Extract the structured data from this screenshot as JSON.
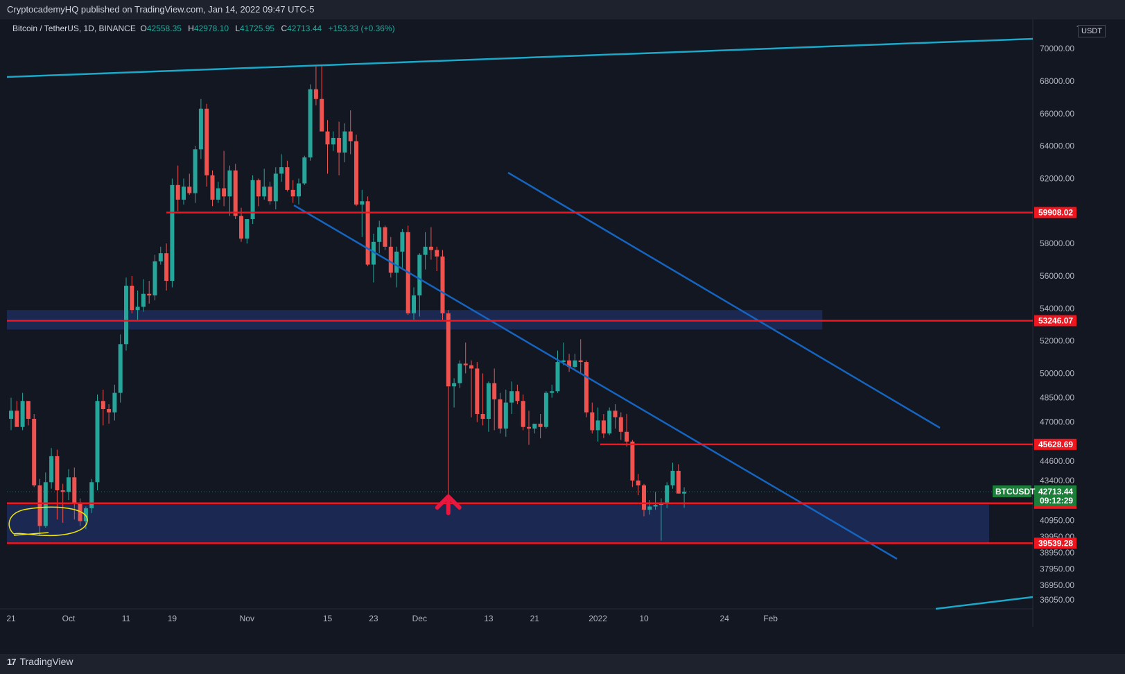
{
  "header": {
    "published": "CryptocademyHQ published on TradingView.com, Jan 14, 2022 09:47 UTC-5"
  },
  "legend": {
    "symbol": "Bitcoin / TetherUS, 1D, BINANCE",
    "o_label": "O",
    "o": "42558.35",
    "h_label": "H",
    "h": "42978.10",
    "l_label": "L",
    "l": "41725.95",
    "c_label": "C",
    "c": "42713.44",
    "change": "+153.33 (+0.36%)"
  },
  "axis": {
    "currency": "USDT",
    "scale_prefix": "7"
  },
  "footer": {
    "brand": "TradingView",
    "brand_logo": "17"
  },
  "price_tag": {
    "symbol": "BTCUSDT",
    "price": "42713.44",
    "countdown": "09:12:29"
  },
  "colors": {
    "background": "#131722",
    "up": "#26a69a",
    "down": "#ef5350",
    "level": "#f0161f",
    "channel": "#1565c0",
    "trend": "#1ca9c9",
    "zone": "#1c2b5a",
    "annotation": "#f2e600"
  },
  "chart_data": {
    "type": "candlestick",
    "ylim": [
      35500,
      71800
    ],
    "yticks": [
      70000,
      68000,
      66000,
      64000,
      62000,
      60000,
      58000,
      56000,
      54000,
      52000,
      50000,
      48500,
      47000,
      44600,
      43400,
      40950,
      39950,
      38950,
      37950,
      36950,
      36050
    ],
    "ytick_labels": [
      "70000.00",
      "68000.00",
      "66000.00",
      "64000.00",
      "62000.00",
      "60000.00",
      "58000.00",
      "56000.00",
      "54000.00",
      "52000.00",
      "50000.00",
      "48500.00",
      "47000.00",
      "44600.00",
      "43400.00",
      "40950.00",
      "39950.00",
      "38950.00",
      "37950.00",
      "36950.00",
      "36050.00"
    ],
    "xticks": [
      {
        "label": "21",
        "day": 0
      },
      {
        "label": "Oct",
        "day": 10
      },
      {
        "label": "11",
        "day": 20
      },
      {
        "label": "19",
        "day": 28
      },
      {
        "label": "Nov",
        "day": 41
      },
      {
        "label": "15",
        "day": 55
      },
      {
        "label": "23",
        "day": 63
      },
      {
        "label": "Dec",
        "day": 71
      },
      {
        "label": "13",
        "day": 83
      },
      {
        "label": "21",
        "day": 91
      },
      {
        "label": "2022",
        "day": 102
      },
      {
        "label": "10",
        "day": 110
      },
      {
        "label": "24",
        "day": 124
      },
      {
        "label": "Feb",
        "day": 132
      }
    ],
    "candles": [
      [
        47200,
        48500,
        46500,
        47700
      ],
      [
        47700,
        48300,
        46900,
        46700
      ],
      [
        46700,
        48800,
        46500,
        48300
      ],
      [
        48300,
        48300,
        46800,
        47200
      ],
      [
        47200,
        47500,
        43000,
        43100
      ],
      [
        43100,
        43500,
        40000,
        40600
      ],
      [
        40600,
        43900,
        40500,
        43300
      ],
      [
        43300,
        45400,
        42900,
        44900
      ],
      [
        44900,
        45300,
        41000,
        42800
      ],
      [
        42800,
        43200,
        40800,
        42700
      ],
      [
        42700,
        44100,
        42200,
        43600
      ],
      [
        43600,
        44200,
        41000,
        42000
      ],
      [
        42000,
        42300,
        40600,
        40900
      ],
      [
        40900,
        41800,
        40400,
        41700
      ],
      [
        41700,
        43500,
        41400,
        43300
      ],
      [
        43300,
        48700,
        42800,
        48300
      ],
      [
        48300,
        49000,
        46800,
        47800
      ],
      [
        47800,
        48100,
        46900,
        47600
      ],
      [
        47600,
        49300,
        47100,
        48800
      ],
      [
        48800,
        52400,
        48200,
        51800
      ],
      [
        51800,
        55900,
        51400,
        55400
      ],
      [
        55400,
        56000,
        53700,
        53900
      ],
      [
        53900,
        55100,
        53300,
        54100
      ],
      [
        54100,
        55800,
        53800,
        54900
      ],
      [
        54900,
        55700,
        54300,
        54800
      ],
      [
        54800,
        57300,
        54500,
        56900
      ],
      [
        56900,
        57800,
        56700,
        57400
      ],
      [
        57400,
        58000,
        55100,
        55700
      ],
      [
        55700,
        62000,
        55300,
        61600
      ],
      [
        61600,
        62800,
        60000,
        60700
      ],
      [
        60700,
        62000,
        60400,
        61500
      ],
      [
        61500,
        62300,
        61000,
        61100
      ],
      [
        61100,
        64000,
        60500,
        63800
      ],
      [
        63800,
        66900,
        63200,
        66300
      ],
      [
        66300,
        66600,
        61500,
        62200
      ],
      [
        62200,
        62500,
        60300,
        60700
      ],
      [
        60700,
        61800,
        60500,
        61400
      ],
      [
        61400,
        63700,
        60300,
        60900
      ],
      [
        60900,
        62800,
        59700,
        62500
      ],
      [
        62500,
        62900,
        59500,
        59700
      ],
      [
        59700,
        60200,
        58100,
        58300
      ],
      [
        58300,
        59400,
        58000,
        59500
      ],
      [
        59500,
        62200,
        59200,
        61900
      ],
      [
        61900,
        62000,
        60300,
        60900
      ],
      [
        60900,
        62600,
        60700,
        61500
      ],
      [
        61500,
        61800,
        60400,
        60600
      ],
      [
        60600,
        62700,
        60100,
        62300
      ],
      [
        62300,
        63500,
        61800,
        62700
      ],
      [
        62700,
        63100,
        61200,
        61300
      ],
      [
        61300,
        61900,
        60500,
        60900
      ],
      [
        60900,
        62000,
        60400,
        61700
      ],
      [
        61700,
        63400,
        61600,
        63300
      ],
      [
        63300,
        67800,
        63100,
        67500
      ],
      [
        67500,
        68900,
        66500,
        66900
      ],
      [
        66900,
        69000,
        64900,
        64900
      ],
      [
        64900,
        65600,
        62300,
        64100
      ],
      [
        64100,
        64900,
        63700,
        64500
      ],
      [
        64500,
        65500,
        62200,
        63600
      ],
      [
        63600,
        65400,
        63000,
        64900
      ],
      [
        64900,
        66200,
        63500,
        64300
      ],
      [
        64300,
        64700,
        60300,
        60400
      ],
      [
        60400,
        61300,
        58400,
        60600
      ],
      [
        60600,
        60900,
        56600,
        56700
      ],
      [
        56700,
        58600,
        55600,
        58100
      ],
      [
        58100,
        59400,
        57400,
        59000
      ],
      [
        59000,
        59100,
        57600,
        57800
      ],
      [
        57800,
        58400,
        55900,
        56200
      ],
      [
        56200,
        57800,
        55300,
        57500
      ],
      [
        57500,
        58900,
        56500,
        58700
      ],
      [
        58700,
        59100,
        53600,
        53700
      ],
      [
        53700,
        55300,
        53300,
        54800
      ],
      [
        54800,
        57400,
        53500,
        57300
      ],
      [
        57300,
        58700,
        56400,
        57800
      ],
      [
        57800,
        59000,
        57000,
        57600
      ],
      [
        57600,
        57800,
        56300,
        57200
      ],
      [
        57200,
        57600,
        53300,
        53700
      ],
      [
        53700,
        53900,
        42000,
        49200
      ],
      [
        49200,
        49700,
        47900,
        49400
      ],
      [
        49400,
        50800,
        49100,
        50600
      ],
      [
        50600,
        51900,
        50000,
        50500
      ],
      [
        50500,
        50800,
        47300,
        50300
      ],
      [
        50300,
        50700,
        47000,
        47500
      ],
      [
        47500,
        50000,
        46800,
        47200
      ],
      [
        47200,
        49500,
        46400,
        49400
      ],
      [
        49400,
        50300,
        46500,
        48400
      ],
      [
        48400,
        48800,
        46300,
        46600
      ],
      [
        46600,
        49000,
        46100,
        48200
      ],
      [
        48200,
        49500,
        47500,
        48900
      ],
      [
        48900,
        49300,
        48100,
        48300
      ],
      [
        48300,
        48700,
        46500,
        46700
      ],
      [
        46700,
        47700,
        45600,
        46600
      ],
      [
        46600,
        46900,
        46300,
        46900
      ],
      [
        46900,
        47500,
        46000,
        46700
      ],
      [
        46700,
        48900,
        46600,
        48800
      ],
      [
        48800,
        49300,
        48500,
        48900
      ],
      [
        48900,
        51400,
        48800,
        50700
      ],
      [
        50700,
        51900,
        50500,
        50800
      ],
      [
        50800,
        51200,
        50100,
        50400
      ],
      [
        50400,
        51200,
        50300,
        50800
      ],
      [
        50800,
        52100,
        50000,
        50700
      ],
      [
        50700,
        50800,
        47300,
        47600
      ],
      [
        47600,
        48200,
        46300,
        46500
      ],
      [
        46500,
        47900,
        45800,
        47100
      ],
      [
        47100,
        47500,
        46000,
        46300
      ],
      [
        46300,
        47900,
        46200,
        47700
      ],
      [
        47700,
        48100,
        46600,
        47300
      ],
      [
        47300,
        47600,
        45900,
        46400
      ],
      [
        46400,
        47500,
        45500,
        45800
      ],
      [
        45800,
        45900,
        43000,
        43400
      ],
      [
        43400,
        43800,
        42500,
        43100
      ],
      [
        43100,
        43200,
        41200,
        41600
      ],
      [
        41600,
        42200,
        41300,
        41800
      ],
      [
        41800,
        42700,
        41600,
        41900
      ],
      [
        41900,
        42300,
        39700,
        42000
      ],
      [
        42000,
        43300,
        41700,
        43100
      ],
      [
        43100,
        44500,
        42900,
        44000
      ],
      [
        44000,
        44400,
        42600,
        42600
      ],
      [
        42600,
        42980,
        41720,
        42710
      ]
    ],
    "levels": [
      {
        "label": "59908.02",
        "value": 59908.02
      },
      {
        "label": "53246.07",
        "value": 53246.07
      },
      {
        "label": "45628.69",
        "value": 45628.69
      },
      {
        "label": "42000.00",
        "value": 42000.0
      },
      {
        "label": "39539.28",
        "value": 39539.28
      }
    ],
    "current": {
      "value": 42713.44
    }
  }
}
